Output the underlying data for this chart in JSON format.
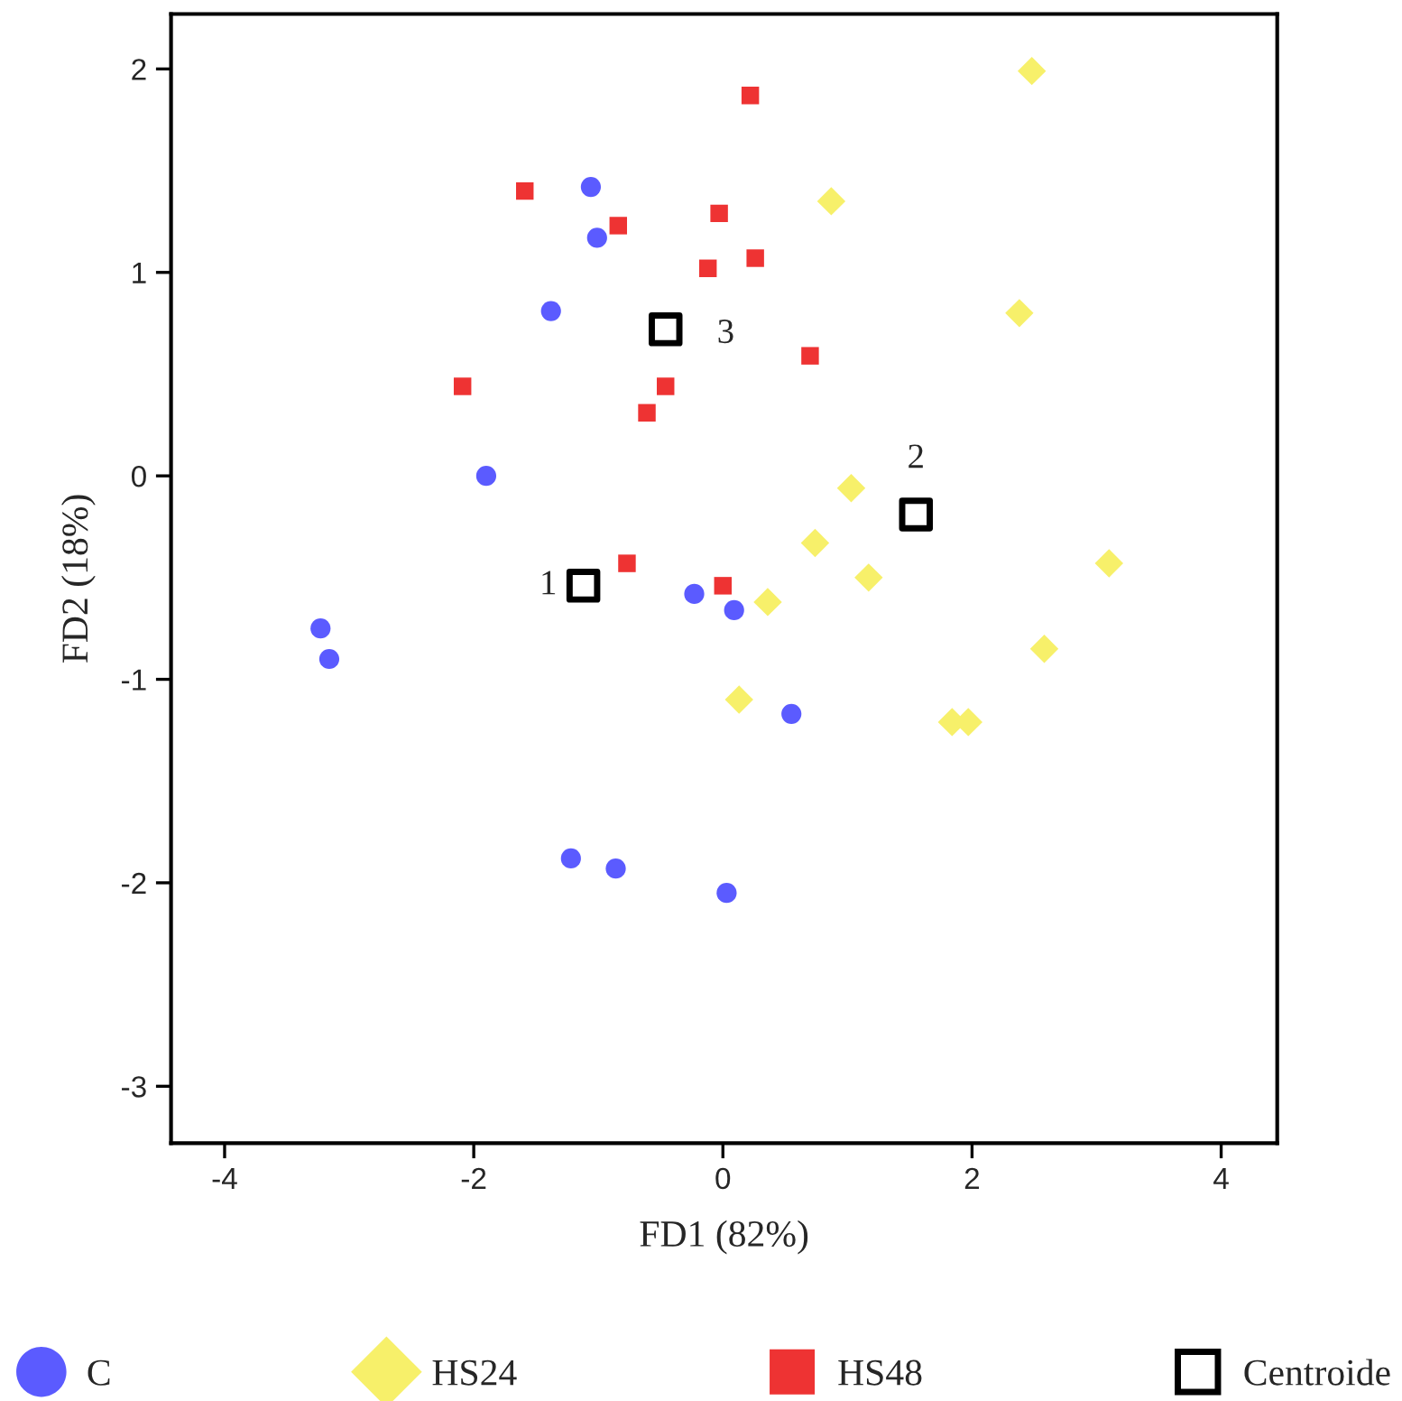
{
  "chart_data": {
    "type": "scatter",
    "xlabel": "FD1 (82%)",
    "ylabel": "FD2 (18%)",
    "xlim": [
      -4.43,
      4.45
    ],
    "ylim": [
      -3.28,
      2.27
    ],
    "xticks": [
      -4,
      -2,
      0,
      2,
      4
    ],
    "yticks": [
      -3,
      -2,
      -1,
      0,
      1,
      2
    ],
    "grid": false,
    "legend": "bottom",
    "series": [
      {
        "name": "C",
        "color": "#5b5bff",
        "marker": "circle",
        "x": [
          -1.06,
          -1.01,
          -1.38,
          -1.9,
          -3.23,
          -3.16,
          -0.23,
          0.09,
          0.55,
          -1.22,
          -0.86,
          0.03
        ],
        "values": [
          1.42,
          1.17,
          0.81,
          0.0,
          -0.75,
          -0.9,
          -0.58,
          -0.66,
          -1.17,
          -1.88,
          -1.93,
          -2.05
        ]
      },
      {
        "name": "HS24",
        "color": "#f7f06a",
        "marker": "diamond",
        "x": [
          2.48,
          0.87,
          2.38,
          1.03,
          0.74,
          1.17,
          0.36,
          3.1,
          2.58,
          0.13,
          1.84,
          1.97
        ],
        "values": [
          1.99,
          1.35,
          0.8,
          -0.06,
          -0.33,
          -0.5,
          -0.62,
          -0.43,
          -0.85,
          -1.1,
          -1.21,
          -1.21
        ]
      },
      {
        "name": "HS48",
        "color": "#ee3333",
        "marker": "square",
        "x": [
          0.22,
          -1.59,
          -0.84,
          -0.03,
          -0.12,
          0.26,
          0.7,
          -2.09,
          -0.46,
          -0.61,
          -0.77,
          0.0
        ],
        "values": [
          1.87,
          1.4,
          1.23,
          1.29,
          1.02,
          1.07,
          0.59,
          0.44,
          0.44,
          0.31,
          -0.43,
          -0.54
        ]
      },
      {
        "name": "Centroide",
        "color": "#000000",
        "marker": "square",
        "x": [
          -1.12,
          1.55,
          -0.46
        ],
        "values": [
          -0.54,
          -0.19,
          0.72
        ]
      }
    ],
    "annotations": [
      {
        "text": "1",
        "x": -1.12,
        "y": -0.54
      },
      {
        "text": "2",
        "x": 1.55,
        "y": -0.19
      },
      {
        "text": "3",
        "x": -0.46,
        "y": 0.72
      }
    ]
  }
}
